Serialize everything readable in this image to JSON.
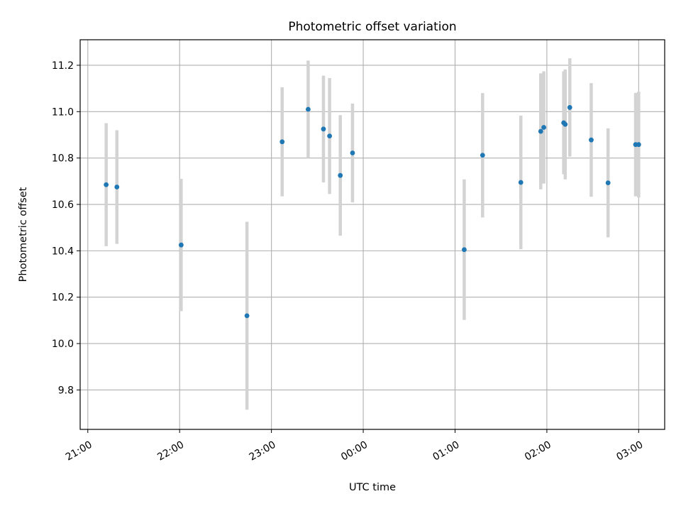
{
  "chart_data": {
    "type": "scatter",
    "title": "Photometric offset variation",
    "xlabel": "UTC time",
    "ylabel": "Photometric offset",
    "grid": true,
    "xlim": [
      "20:55",
      "03:17"
    ],
    "ylim": [
      9.63,
      11.31
    ],
    "x_ticks": [
      "21:00",
      "22:00",
      "23:00",
      "00:00",
      "01:00",
      "02:00",
      "03:00"
    ],
    "y_ticks": [
      "9.8",
      "10.0",
      "10.2",
      "10.4",
      "10.6",
      "10.8",
      "11.0",
      "11.2"
    ],
    "marker_color": "#1f77b4",
    "errorbar_color": "#d3d3d3",
    "series": [
      {
        "points": [
          {
            "time": "21:12",
            "y": 10.685,
            "err": 0.265
          },
          {
            "time": "21:19",
            "y": 10.675,
            "err": 0.245
          },
          {
            "time": "22:01",
            "y": 10.425,
            "err": 0.285
          },
          {
            "time": "22:44",
            "y": 10.12,
            "err": 0.405
          },
          {
            "time": "23:07",
            "y": 10.87,
            "err": 0.235
          },
          {
            "time": "23:24",
            "y": 11.01,
            "err": 0.21
          },
          {
            "time": "23:34",
            "y": 10.925,
            "err": 0.23
          },
          {
            "time": "23:38",
            "y": 10.895,
            "err": 0.25
          },
          {
            "time": "23:45",
            "y": 10.725,
            "err": 0.26
          },
          {
            "time": "23:53",
            "y": 10.822,
            "err": 0.213
          },
          {
            "time": "01:06",
            "y": 10.405,
            "err": 0.303
          },
          {
            "time": "01:18",
            "y": 10.812,
            "err": 0.268
          },
          {
            "time": "01:43",
            "y": 10.695,
            "err": 0.288
          },
          {
            "time": "01:56",
            "y": 10.915,
            "err": 0.25
          },
          {
            "time": "01:58",
            "y": 10.932,
            "err": 0.242
          },
          {
            "time": "02:11",
            "y": 10.952,
            "err": 0.222
          },
          {
            "time": "02:12",
            "y": 10.945,
            "err": 0.237
          },
          {
            "time": "02:15",
            "y": 11.018,
            "err": 0.212
          },
          {
            "time": "02:29",
            "y": 10.878,
            "err": 0.245
          },
          {
            "time": "02:40",
            "y": 10.693,
            "err": 0.235
          },
          {
            "time": "02:58",
            "y": 10.858,
            "err": 0.223
          },
          {
            "time": "03:00",
            "y": 10.858,
            "err": 0.228
          }
        ]
      }
    ]
  }
}
